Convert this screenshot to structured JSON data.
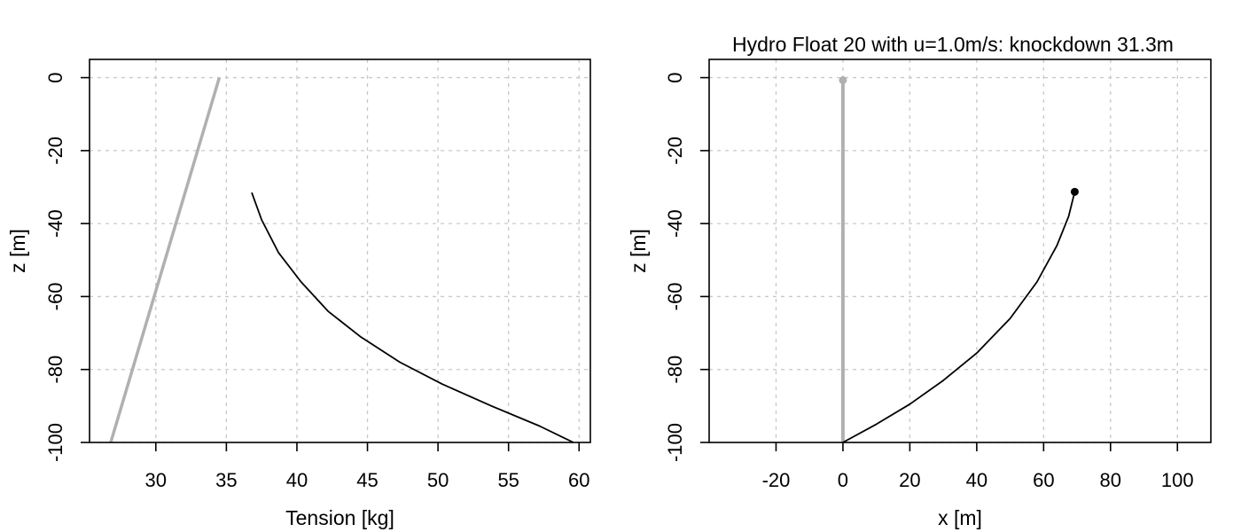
{
  "chart_data": [
    {
      "type": "line",
      "title": "",
      "xlabel": "Tension [kg]",
      "ylabel": "z [m]",
      "xlim": [
        25.3,
        60.8
      ],
      "ylim": [
        -100,
        5
      ],
      "xticks": [
        30,
        35,
        40,
        45,
        50,
        55,
        60
      ],
      "yticks": [
        0,
        -20,
        -40,
        -60,
        -80,
        -100
      ],
      "grid": true,
      "series": [
        {
          "color": "#b0b0b0",
          "width": 3.5,
          "x": [
            26.8,
            34.5
          ],
          "y": [
            -100,
            0
          ]
        },
        {
          "color": "#000000",
          "width": 1.8,
          "x": [
            36.8,
            37.5,
            38.7,
            40.3,
            42.2,
            44.5,
            47.3,
            50.3,
            53.8,
            57.2,
            59.6
          ],
          "y": [
            -31.5,
            -39,
            -48,
            -56,
            -64,
            -71,
            -78,
            -84,
            -90,
            -95.5,
            -100
          ]
        }
      ]
    },
    {
      "type": "line",
      "title": "Hydro Float 20 with u=1.0m/s: knockdown 31.3m",
      "xlabel": "x [m]",
      "ylabel": "z [m]",
      "xlim": [
        -40,
        110
      ],
      "ylim": [
        -100,
        5
      ],
      "xticks": [
        -20,
        0,
        20,
        40,
        60,
        80,
        100
      ],
      "yticks": [
        0,
        -20,
        -40,
        -60,
        -80,
        -100
      ],
      "grid": true,
      "series": [
        {
          "color": "#b0b0b0",
          "width": 4,
          "x": [
            0,
            0
          ],
          "y": [
            -100,
            -0.7
          ],
          "end_marker": true
        },
        {
          "color": "#000000",
          "width": 1.8,
          "x": [
            0,
            10,
            20,
            30,
            40,
            50,
            58,
            64,
            67.5,
            69.3
          ],
          "y": [
            -100,
            -95,
            -89.5,
            -83,
            -75.5,
            -66,
            -56,
            -46,
            -38,
            -31.3
          ],
          "end_marker": true
        }
      ]
    }
  ]
}
